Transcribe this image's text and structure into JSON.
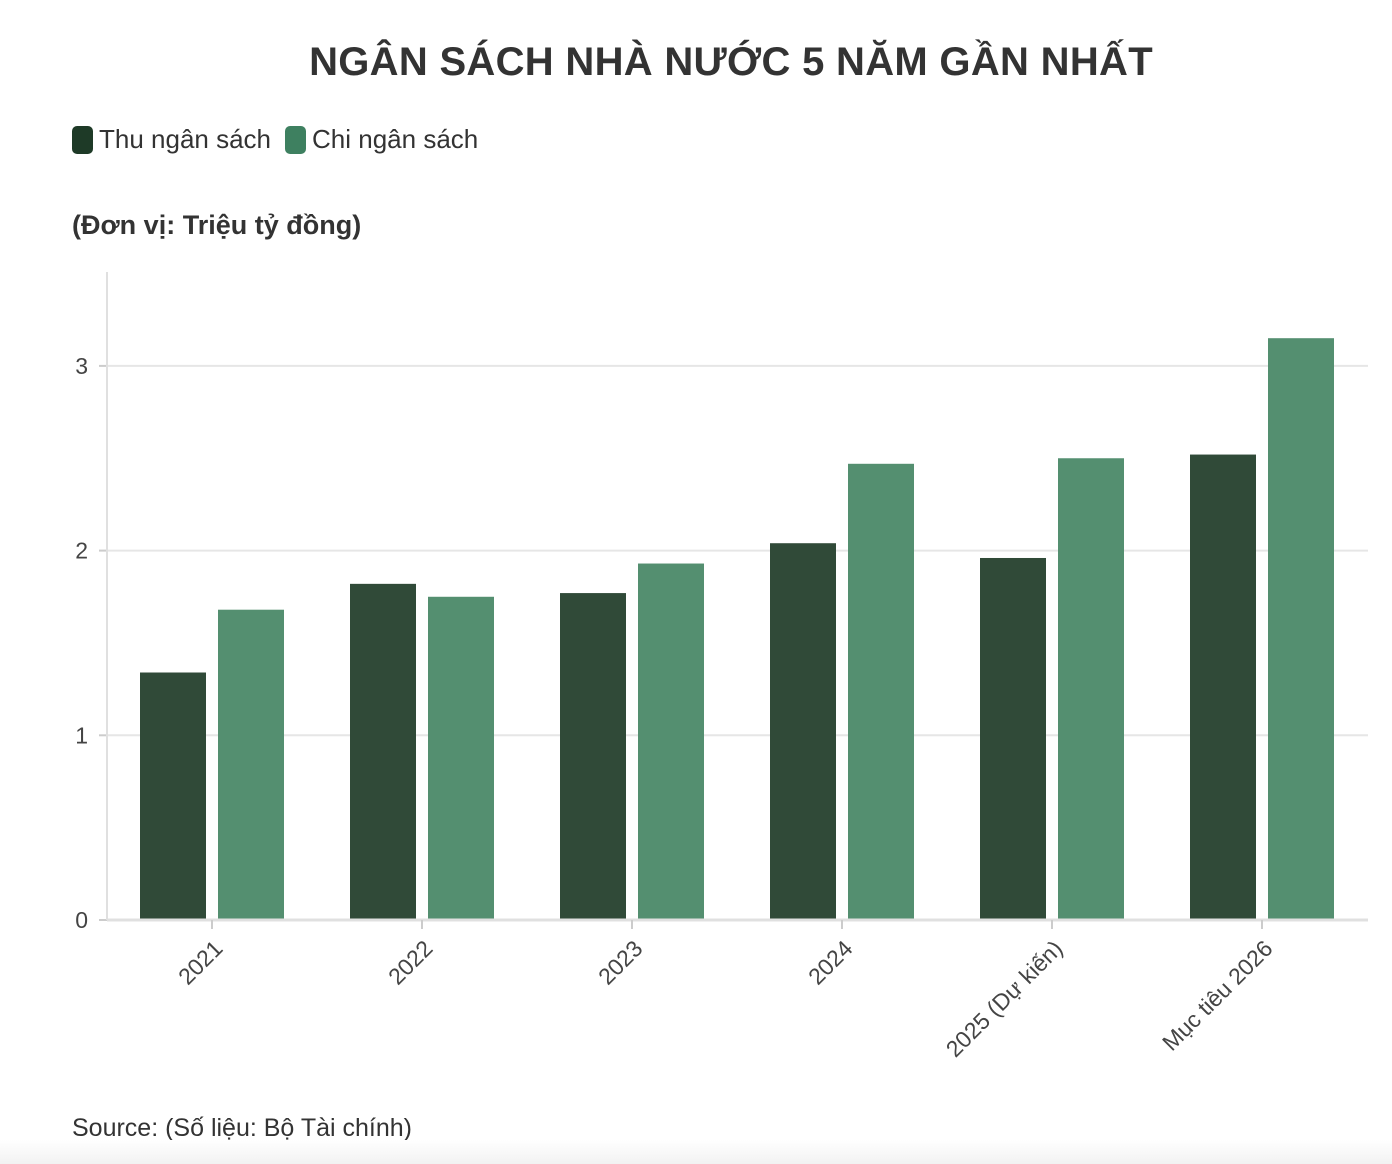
{
  "title": "NGÂN SÁCH NHÀ NƯỚC 5 NĂM GẦN NHẤT",
  "unit_label": "(Đơn vị: Triệu tỷ đồng)",
  "source": "Source: (Số liệu: Bộ Tài chính)",
  "legend": [
    {
      "label": "Thu ngân sách",
      "color": "#1e3a27"
    },
    {
      "label": "Chi ngân sách",
      "color": "#3e8060"
    }
  ],
  "chart_data": {
    "type": "bar",
    "title": "NGÂN SÁCH NHÀ NƯỚC 5 NĂM GẦN NHẤT",
    "xlabel": "",
    "ylabel": "(Đơn vị: Triệu tỷ đồng)",
    "categories": [
      "2021",
      "2022",
      "2023",
      "2024",
      "2025 (Dự kiến)",
      "Mục tiêu 2026"
    ],
    "series": [
      {
        "name": "Thu ngân sách",
        "color": "#304a38",
        "values": [
          1.34,
          1.82,
          1.77,
          2.04,
          1.96,
          2.52
        ]
      },
      {
        "name": "Chi ngân sách",
        "color": "#548f70",
        "values": [
          1.68,
          1.75,
          1.93,
          2.47,
          2.5,
          3.15
        ]
      }
    ],
    "yticks": [
      0,
      1,
      2,
      3
    ],
    "ylim": [
      0,
      3.5
    ],
    "grid": true,
    "legend_position": "top-left"
  }
}
